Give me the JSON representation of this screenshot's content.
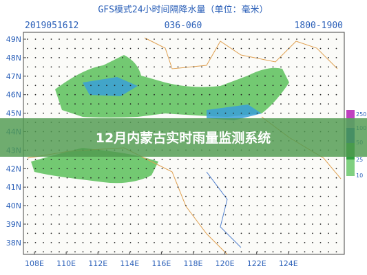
{
  "header": {
    "title": "GFS模式24小时间隔降水量（单位：毫米）",
    "init_time": "2019051612",
    "forecast_hours": "036-060",
    "time_range": "1800-1900"
  },
  "lat_labels": [
    "49N",
    "48N",
    "47N",
    "46N",
    "45N",
    "44N",
    "43N",
    "42N",
    "41N",
    "40N",
    "39N",
    "38N"
  ],
  "lon_labels": [
    "108E",
    "110E",
    "112E",
    "114E",
    "116E",
    "118E",
    "120E",
    "122E",
    "124E"
  ],
  "colorbar_labels": [
    "250",
    "100",
    "50",
    "25",
    "10"
  ],
  "banner_title": "12月内蒙古实时雨量监测系统"
}
